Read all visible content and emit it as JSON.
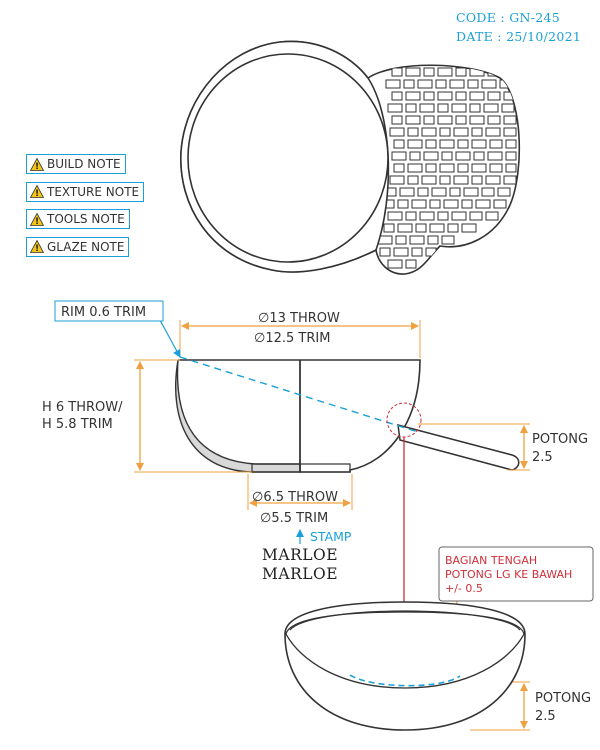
{
  "header": {
    "code": "CODE : GN-245",
    "date": "DATE : 25/10/2021"
  },
  "notes": [
    {
      "label": "BUILD NOTE",
      "icon": "warning-icon"
    },
    {
      "label": "TEXTURE NOTE",
      "icon": "warning-icon"
    },
    {
      "label": "TOOLS NOTE",
      "icon": "warning-icon"
    },
    {
      "label": "GLAZE NOTE",
      "icon": "warning-icon"
    }
  ],
  "dimensions": {
    "rim": "RIM 0.6 TRIM",
    "diameter_throw": "∅13 THROW",
    "diameter_trim": "∅12.5 TRIM",
    "height_throw": "H 6 THROW/",
    "height_trim": "H 5.8 TRIM",
    "foot_throw": "∅6.5 THROW",
    "foot_trim": "∅5.5 TRIM",
    "cut_label_1": "POTONG",
    "cut_value_1": "2.5",
    "cut_label_2": "POTONG",
    "cut_value_2": "2.5"
  },
  "stamp": {
    "label": "STAMP",
    "brand_line_1": "MARLOE",
    "brand_line_2": "MARLOE"
  },
  "callout": {
    "line_1": "BAGIAN TENGAH",
    "line_2": "POTONG LG KE BAWAH",
    "line_3": "+/- 0.5"
  },
  "colors": {
    "blue": "#1aa0d8",
    "orange": "#f0a040",
    "red": "#d0303a",
    "outline": "#333333",
    "fill_gray": "#d8d8d8"
  }
}
